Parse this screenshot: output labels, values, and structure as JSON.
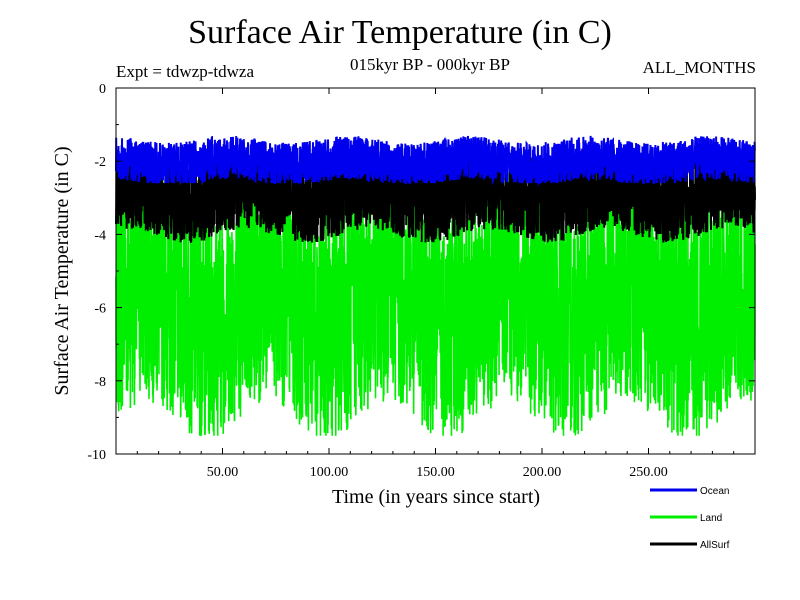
{
  "chart_data": {
    "type": "line",
    "title": "Surface Air Temperature (in C)",
    "subtitle": "015kyr BP - 000kyr BP",
    "experiment_label": "Expt = tdwzp-tdwza",
    "period_label": "ALL_MONTHS",
    "xlabel": "Time (in years since start)",
    "ylabel": "Surface Air Temperature (in C)",
    "xlim": [
      0,
      300
    ],
    "ylim": [
      -10,
      0
    ],
    "x_ticks": [
      50,
      100,
      150,
      200,
      250
    ],
    "x_tick_labels": [
      "50.00",
      "100.00",
      "150.00",
      "200.00",
      "250.00"
    ],
    "y_ticks": [
      0,
      -2,
      -4,
      -6,
      -8,
      -10
    ],
    "y_tick_labels": [
      "0",
      "-2",
      "-4",
      "-6",
      "-8",
      "-10"
    ],
    "grid": false,
    "legend_position": "bottom-right, below plot",
    "series": [
      {
        "name": "Land",
        "color": "#00ee00",
        "mean": -5.8,
        "min": -9.5,
        "max": -2.3
      },
      {
        "name": "AllSurf",
        "color": "#000000",
        "mean": -2.9,
        "min": -4.4,
        "max": -1.9
      },
      {
        "name": "Ocean",
        "color": "#0000ee",
        "mean": -2.0,
        "min": -2.6,
        "max": -1.3
      }
    ],
    "legend": [
      {
        "label": "Ocean",
        "color": "#0000ee"
      },
      {
        "label": "Land",
        "color": "#00ee00"
      },
      {
        "label": "AllSurf",
        "color": "#000000"
      }
    ]
  }
}
